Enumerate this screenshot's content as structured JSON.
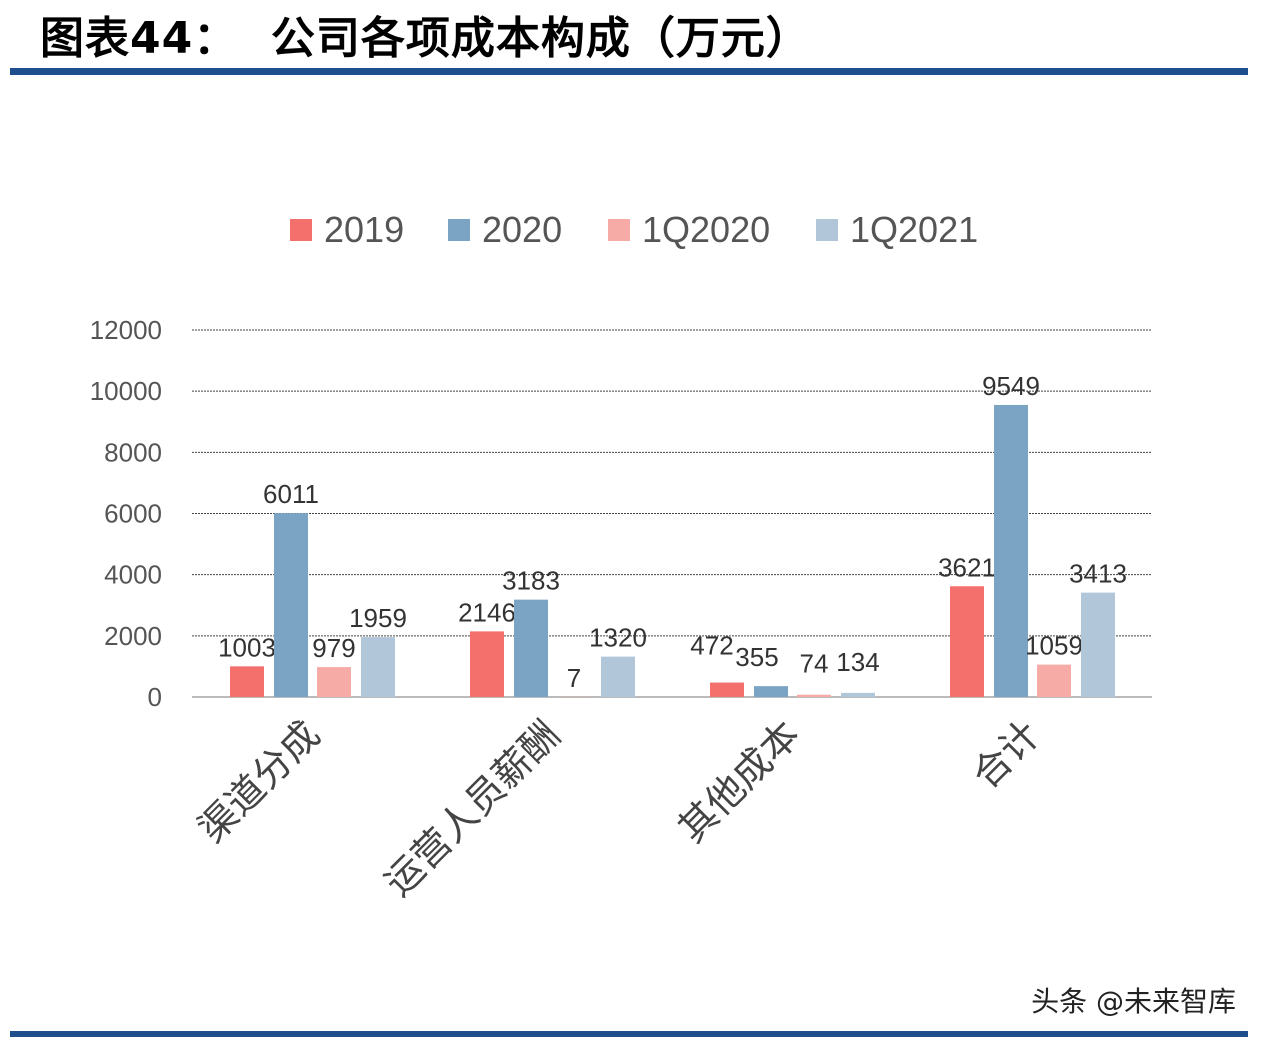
{
  "header": {
    "title": "图表44：  公司各项成本构成（万元）"
  },
  "watermark": "头条 @未来智库",
  "chart_data": {
    "type": "bar",
    "title": "",
    "xlabel": "",
    "ylabel": "",
    "ylim": [
      0,
      12000
    ],
    "yticks": [
      0,
      2000,
      4000,
      6000,
      8000,
      10000,
      12000
    ],
    "grid": true,
    "legend_position": "top",
    "categories": [
      "渠道分成",
      "运营人员薪酬",
      "其他成本",
      "合计"
    ],
    "series": [
      {
        "name": "2019",
        "color": "#f4706c",
        "values": [
          1003,
          2146,
          472,
          3621
        ]
      },
      {
        "name": "2020",
        "color": "#7ba3c4",
        "values": [
          6011,
          3183,
          355,
          9549
        ]
      },
      {
        "name": "1Q2020",
        "color": "#f7aba7",
        "values": [
          979,
          7,
          74,
          1059
        ]
      },
      {
        "name": "1Q2021",
        "color": "#b1c7d9",
        "values": [
          1959,
          1320,
          134,
          3413
        ]
      }
    ]
  }
}
